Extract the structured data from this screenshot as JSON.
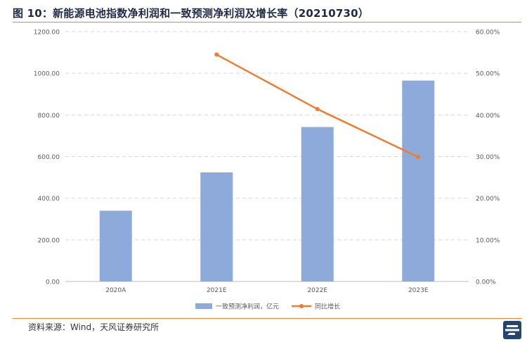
{
  "title": "图 10：新能源电池指数净利润和一致预测净利润及增长率（20210730）",
  "source": "资料来源：Wind，天风证券研究所",
  "logo_icon": "tianfeng-logo-icon",
  "chart_data": {
    "type": "bar",
    "categories": [
      "2020A",
      "2021E",
      "2022E",
      "2023E"
    ],
    "series": [
      {
        "name": "一致预测净利润，亿元",
        "type": "bar",
        "axis": "left",
        "color": "#8eaadb",
        "values": [
          340,
          524,
          742,
          965
        ]
      },
      {
        "name": "同比增长",
        "type": "line",
        "axis": "right",
        "color": "#ed7d31",
        "values": [
          null,
          0.545,
          0.414,
          0.299
        ]
      }
    ],
    "y_left": {
      "ylim": [
        0,
        1200
      ],
      "ticks": [
        "0.00",
        "200.00",
        "400.00",
        "600.00",
        "800.00",
        "1000.00",
        "1200.00"
      ]
    },
    "y_right": {
      "ylim": [
        0,
        0.6
      ],
      "ticks": [
        "0.00%",
        "10.00%",
        "20.00%",
        "30.00%",
        "40.00%",
        "50.00%",
        "60.00%"
      ]
    },
    "grid": true,
    "legend_position": "bottom"
  }
}
